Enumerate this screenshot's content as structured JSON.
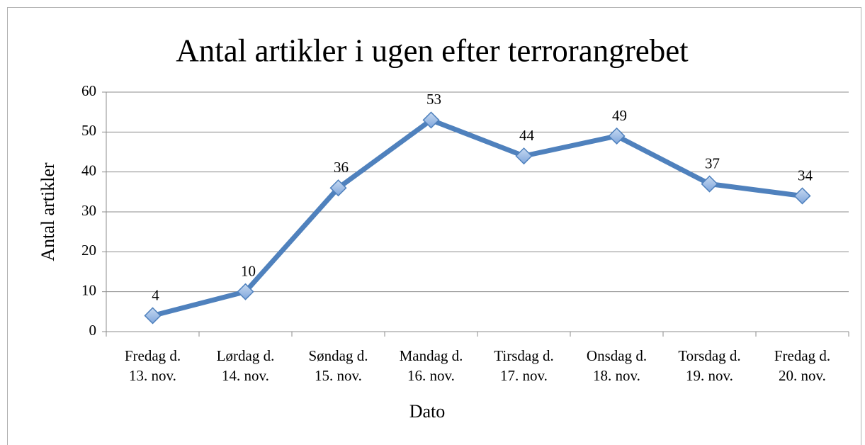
{
  "chart_data": {
    "type": "line",
    "title": "Antal artikler i ugen efter terrorangrebet",
    "x_label": "Dato",
    "y_label": "Antal artikler",
    "categories": [
      "Fredag d.\n13. nov.",
      "Lørdag d.\n14. nov.",
      "Søndag d.\n15. nov.",
      "Mandag d.\n16. nov.",
      "Tirsdag d.\n17. nov.",
      "Onsdag d.\n18. nov.",
      "Torsdag d.\n19. nov.",
      "Fredag d.\n20. nov."
    ],
    "values": [
      4,
      10,
      36,
      53,
      44,
      49,
      37,
      34
    ],
    "color": "#4f81bd",
    "ylim": [
      0,
      60
    ],
    "yticks": [
      0,
      10,
      20,
      30,
      40,
      50,
      60
    ],
    "grid": true
  }
}
